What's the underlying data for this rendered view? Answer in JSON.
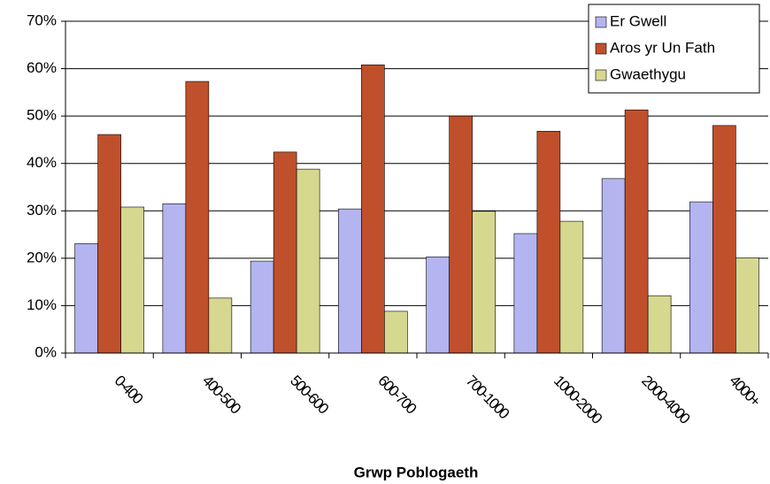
{
  "chart_data": {
    "type": "bar",
    "x_label": "Grwp Poblogaeth",
    "categories": [
      "0-400",
      "400-500",
      "500-600",
      "600-700",
      "700-1000",
      "1000-2000",
      "2000-4000",
      "4000+"
    ],
    "series": [
      {
        "name": "Er Gwell",
        "color": "#b4b4f0",
        "values": [
          23.1,
          31.5,
          19.4,
          30.4,
          20.3,
          25.2,
          36.8,
          31.9
        ]
      },
      {
        "name": "Aros yr Un Fath",
        "color": "#c0502c",
        "values": [
          46.1,
          57.3,
          42.4,
          60.8,
          50.0,
          46.8,
          51.3,
          48.0
        ]
      },
      {
        "name": "Gwaethygu",
        "color": "#d6d890",
        "values": [
          30.8,
          11.6,
          38.8,
          8.8,
          29.9,
          27.8,
          12.1,
          20.1
        ]
      }
    ],
    "ylim": [
      0,
      70
    ],
    "yticks": [
      {
        "value": 0,
        "label": "0%"
      },
      {
        "value": 10,
        "label": "10%"
      },
      {
        "value": 20,
        "label": "20%"
      },
      {
        "value": 30,
        "label": "30%"
      },
      {
        "value": 40,
        "label": "40%"
      },
      {
        "value": 50,
        "label": "50%"
      },
      {
        "value": 60,
        "label": "60%"
      },
      {
        "value": 70,
        "label": "70%"
      }
    ],
    "grid": true,
    "legend": "upper right"
  }
}
